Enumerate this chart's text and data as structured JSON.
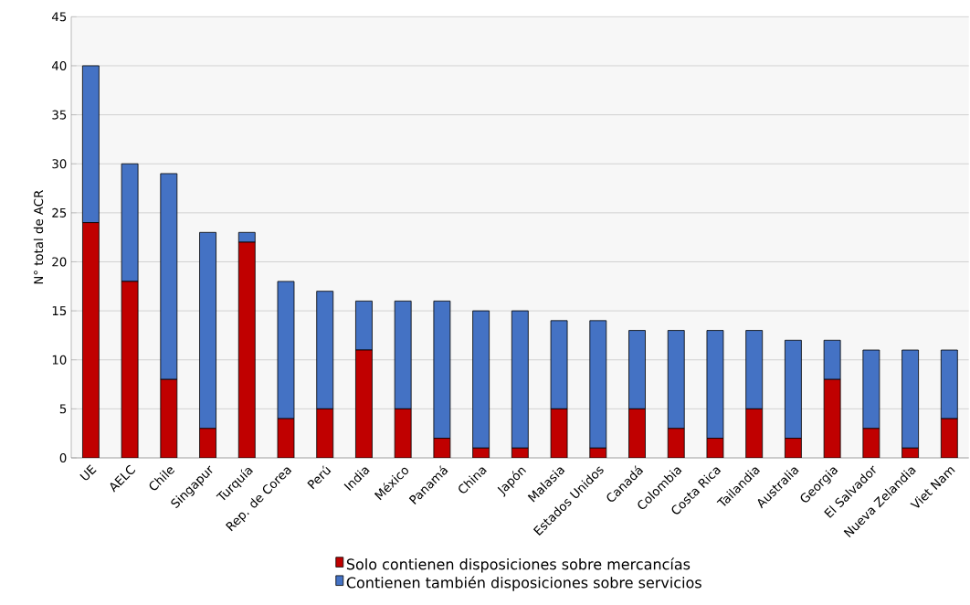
{
  "chart_data": {
    "type": "bar",
    "stacked": true,
    "ylabel": "N° total de ACR",
    "categories": [
      "UE",
      "AELC",
      "Chile",
      "Singapur",
      "Turquía",
      "Rep. de Corea",
      "Perú",
      "India",
      "México",
      "Panamá",
      "China",
      "Japón",
      "Malasia",
      "Estados Unidos",
      "Canadá",
      "Colombia",
      "Costa Rica",
      "Tailandia",
      "Australia",
      "Georgia",
      "El Salvador",
      "Nueva Zelandia",
      "Viet Nam"
    ],
    "series": [
      {
        "name": "Solo contienen disposiciones sobre mercancías",
        "color": "#c00000",
        "values": [
          24,
          18,
          8,
          3,
          22,
          4,
          5,
          11,
          5,
          2,
          1,
          1,
          5,
          1,
          5,
          3,
          2,
          5,
          2,
          8,
          3,
          1,
          4
        ]
      },
      {
        "name": "Contienen también disposiciones sobre servicios",
        "color": "#4472c4",
        "values": [
          16,
          12,
          21,
          20,
          1,
          14,
          12,
          5,
          11,
          14,
          14,
          14,
          9,
          13,
          8,
          10,
          11,
          8,
          10,
          4,
          8,
          10,
          7
        ]
      }
    ],
    "ylim": [
      0,
      45
    ],
    "yticks": [
      0,
      5,
      10,
      15,
      20,
      25,
      30,
      35,
      40,
      45
    ],
    "grid": "y",
    "legend": "bottom"
  }
}
